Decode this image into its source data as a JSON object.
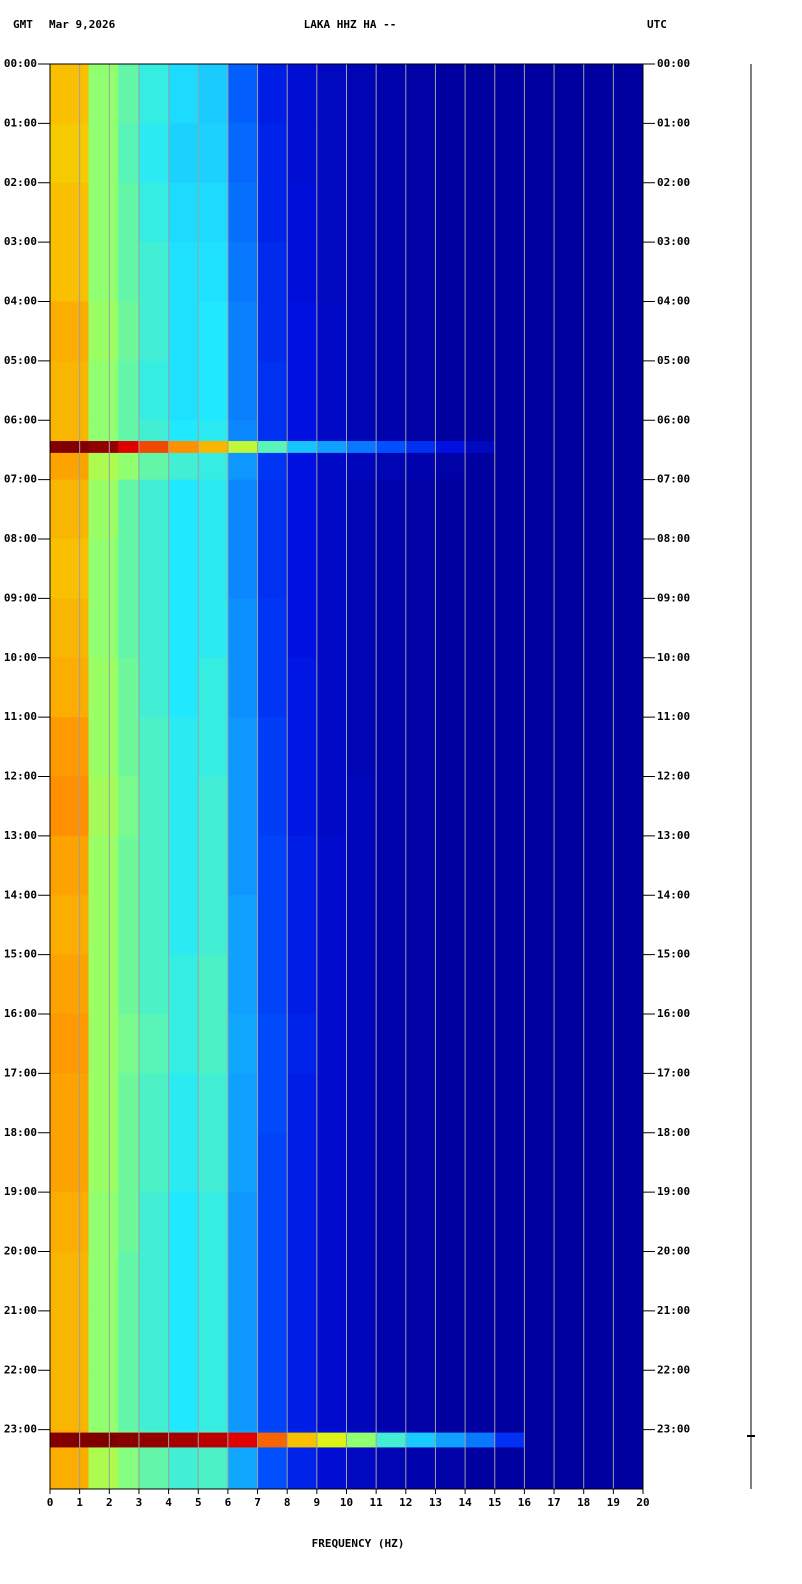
{
  "chart_data": {
    "type": "spectrogram",
    "header_left": "GMT",
    "date": "Mar 9,2026",
    "title": "LAKA HHZ HA --",
    "header_right": "UTC",
    "xlabel": "FREQUENCY (HZ)",
    "xlim": [
      0,
      20
    ],
    "xticks": [
      0,
      1,
      2,
      3,
      4,
      5,
      6,
      7,
      8,
      9,
      10,
      11,
      12,
      13,
      14,
      15,
      16,
      17,
      18,
      19,
      20
    ],
    "ylim": [
      0,
      24
    ],
    "yticks": [
      {
        "value": 0,
        "label": "00:00"
      },
      {
        "value": 1,
        "label": "01:00"
      },
      {
        "value": 2,
        "label": "02:00"
      },
      {
        "value": 3,
        "label": "03:00"
      },
      {
        "value": 4,
        "label": "04:00"
      },
      {
        "value": 5,
        "label": "05:00"
      },
      {
        "value": 6,
        "label": "06:00"
      },
      {
        "value": 7,
        "label": "07:00"
      },
      {
        "value": 8,
        "label": "08:00"
      },
      {
        "value": 9,
        "label": "09:00"
      },
      {
        "value": 10,
        "label": "10:00"
      },
      {
        "value": 11,
        "label": "11:00"
      },
      {
        "value": 12,
        "label": "12:00"
      },
      {
        "value": 13,
        "label": "13:00"
      },
      {
        "value": 14,
        "label": "14:00"
      },
      {
        "value": 15,
        "label": "15:00"
      },
      {
        "value": 16,
        "label": "16:00"
      },
      {
        "value": 17,
        "label": "17:00"
      },
      {
        "value": 18,
        "label": "18:00"
      },
      {
        "value": 19,
        "label": "19:00"
      },
      {
        "value": 20,
        "label": "20:00"
      },
      {
        "value": 21,
        "label": "21:00"
      },
      {
        "value": 22,
        "label": "22:00"
      },
      {
        "value": 23,
        "label": "23:00"
      }
    ],
    "xbins": [
      0,
      1.3,
      2.3,
      3,
      4,
      5,
      6,
      7,
      8,
      9,
      10,
      11,
      12,
      13,
      14,
      15,
      16,
      17,
      18,
      19,
      20
    ],
    "ybins": [
      0,
      1,
      2,
      3,
      4,
      5,
      6,
      6.35,
      6.55,
      7,
      8,
      9,
      10,
      11,
      12,
      13,
      14,
      15,
      16,
      17,
      18,
      19,
      20,
      21,
      22,
      23,
      23.05,
      23.3,
      24
    ],
    "zlim": [
      0,
      9
    ],
    "colormap": [
      "#0000a0",
      "#0010e0",
      "#0050ff",
      "#10a0ff",
      "#20e8ff",
      "#90ff70",
      "#f0f000",
      "#ff9000",
      "#e00000",
      "#800000"
    ],
    "grid": true,
    "z": [
      [
        6.5,
        5,
        4.6,
        4.2,
        3.8,
        3.6,
        2.2,
        1.2,
        0.8,
        0.5,
        0.3,
        0.2,
        0.1,
        0,
        0,
        0,
        0,
        0,
        0,
        0
      ],
      [
        6.4,
        5,
        4.5,
        4.1,
        3.7,
        3.7,
        2.3,
        1.3,
        0.8,
        0.5,
        0.3,
        0.2,
        0.1,
        0,
        0,
        0,
        0,
        0,
        0,
        0
      ],
      [
        6.5,
        5,
        4.6,
        4.2,
        3.8,
        3.8,
        2.4,
        1.3,
        0.9,
        0.5,
        0.3,
        0.2,
        0.1,
        0,
        0,
        0,
        0,
        0,
        0,
        0
      ],
      [
        6.5,
        5,
        4.6,
        4.3,
        3.9,
        3.9,
        2.5,
        1.4,
        0.9,
        0.5,
        0.3,
        0.2,
        0.1,
        0,
        0,
        0,
        0,
        0,
        0,
        0
      ],
      [
        6.7,
        5.1,
        4.7,
        4.3,
        3.9,
        4,
        2.6,
        1.4,
        1,
        0.6,
        0.3,
        0.2,
        0.1,
        0,
        0,
        0,
        0,
        0,
        0,
        0
      ],
      [
        6.6,
        5,
        4.6,
        4.2,
        3.9,
        4,
        2.6,
        1.5,
        1,
        0.6,
        0.3,
        0.2,
        0.1,
        0,
        0,
        0,
        0,
        0,
        0,
        0
      ],
      [
        6.6,
        5,
        4.6,
        4.3,
        4,
        4.1,
        2.7,
        1.5,
        1,
        0.6,
        0.3,
        0.2,
        0.1,
        0,
        0,
        0,
        0,
        0,
        0,
        0
      ],
      [
        9,
        8.8,
        8,
        7.5,
        7,
        6.6,
        5.5,
        4.5,
        3.5,
        3,
        2.5,
        2,
        1.5,
        1,
        0.5,
        0,
        0,
        0,
        0,
        0
      ],
      [
        6.8,
        5.3,
        5,
        4.6,
        4.3,
        4.2,
        2.9,
        1.6,
        1,
        0.6,
        0.4,
        0.3,
        0.2,
        0.1,
        0,
        0,
        0,
        0,
        0,
        0
      ],
      [
        6.6,
        5.1,
        4.6,
        4.3,
        4,
        4.1,
        2.7,
        1.5,
        1,
        0.6,
        0.3,
        0.2,
        0.1,
        0,
        0,
        0,
        0,
        0,
        0,
        0
      ],
      [
        6.5,
        5,
        4.6,
        4.3,
        4,
        4.1,
        2.7,
        1.5,
        1,
        0.6,
        0.3,
        0.2,
        0.1,
        0,
        0,
        0,
        0,
        0,
        0,
        0
      ],
      [
        6.6,
        5,
        4.6,
        4.3,
        4,
        4.1,
        2.8,
        1.6,
        1,
        0.6,
        0.3,
        0.2,
        0.1,
        0,
        0,
        0,
        0,
        0,
        0,
        0
      ],
      [
        6.7,
        5.1,
        4.7,
        4.3,
        4,
        4.2,
        2.8,
        1.6,
        1.1,
        0.6,
        0.3,
        0.2,
        0.1,
        0,
        0,
        0,
        0,
        0,
        0,
        0
      ],
      [
        6.9,
        5.1,
        4.7,
        4.4,
        4.1,
        4.2,
        2.9,
        1.7,
        1.1,
        0.6,
        0.3,
        0.2,
        0.1,
        0,
        0,
        0,
        0,
        0,
        0,
        0
      ],
      [
        7,
        5.2,
        4.8,
        4.4,
        4.1,
        4.3,
        2.9,
        1.7,
        1.1,
        0.6,
        0.4,
        0.2,
        0.1,
        0,
        0,
        0,
        0,
        0,
        0,
        0
      ],
      [
        6.8,
        5.1,
        4.7,
        4.4,
        4.1,
        4.3,
        2.9,
        1.8,
        1.2,
        0.7,
        0.4,
        0.2,
        0.1,
        0,
        0,
        0,
        0,
        0,
        0,
        0
      ],
      [
        6.7,
        5.1,
        4.7,
        4.4,
        4.1,
        4.3,
        3,
        1.8,
        1.2,
        0.7,
        0.4,
        0.2,
        0.1,
        0,
        0,
        0,
        0,
        0,
        0,
        0
      ],
      [
        6.8,
        5.1,
        4.7,
        4.4,
        4.2,
        4.4,
        3,
        1.8,
        1.2,
        0.7,
        0.4,
        0.2,
        0.1,
        0,
        0,
        0,
        0,
        0,
        0,
        0
      ],
      [
        6.9,
        5.1,
        4.8,
        4.5,
        4.2,
        4.4,
        3.1,
        1.9,
        1.3,
        0.7,
        0.4,
        0.2,
        0.1,
        0,
        0,
        0,
        0,
        0,
        0,
        0
      ],
      [
        6.8,
        5.1,
        4.7,
        4.4,
        4.1,
        4.3,
        3,
        1.9,
        1.2,
        0.7,
        0.4,
        0.2,
        0.1,
        0,
        0,
        0,
        0,
        0,
        0,
        0
      ],
      [
        6.8,
        5.1,
        4.7,
        4.4,
        4.1,
        4.3,
        3,
        1.8,
        1.2,
        0.7,
        0.4,
        0.2,
        0.1,
        0,
        0,
        0,
        0,
        0,
        0,
        0
      ],
      [
        6.7,
        5,
        4.7,
        4.3,
        4,
        4.2,
        2.9,
        1.8,
        1.2,
        0.7,
        0.4,
        0.2,
        0.1,
        0,
        0,
        0,
        0,
        0,
        0,
        0
      ],
      [
        6.6,
        5,
        4.6,
        4.3,
        4,
        4.2,
        2.9,
        1.8,
        1.2,
        0.7,
        0.4,
        0.2,
        0.1,
        0,
        0,
        0,
        0,
        0,
        0,
        0
      ],
      [
        6.6,
        5,
        4.6,
        4.3,
        4,
        4.2,
        2.9,
        1.8,
        1.2,
        0.7,
        0.4,
        0.2,
        0.1,
        0,
        0,
        0,
        0,
        0,
        0,
        0
      ],
      [
        6.6,
        5,
        4.6,
        4.3,
        4,
        4.2,
        2.9,
        1.8,
        1.2,
        0.7,
        0.4,
        0.2,
        0.1,
        0,
        0,
        0,
        0,
        0,
        0,
        0
      ],
      [
        6.7,
        5.1,
        4.7,
        4.4,
        4.1,
        4.3,
        3,
        1.9,
        1.3,
        0.8,
        0.5,
        0.3,
        0.2,
        0.1,
        0,
        0,
        0,
        0,
        0,
        0
      ],
      [
        9,
        9,
        8.9,
        8.8,
        8.6,
        8.4,
        8,
        7.3,
        6.5,
        5.8,
        5,
        4.3,
        3.6,
        3,
        2.5,
        1.5,
        0,
        0,
        0,
        0
      ],
      [
        6.7,
        5.3,
        4.9,
        4.6,
        4.3,
        4.4,
        3.1,
        2,
        1.3,
        0.8,
        0.5,
        0.3,
        0.2,
        0.1,
        0,
        0,
        0,
        0,
        0,
        0
      ]
    ]
  }
}
